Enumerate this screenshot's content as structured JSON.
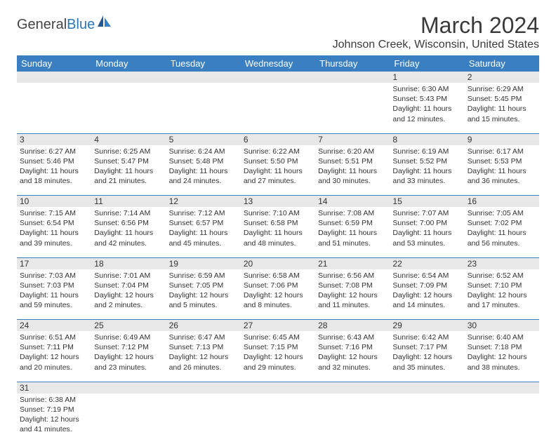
{
  "logo": {
    "main": "General",
    "accent": "Blue"
  },
  "title": "March 2024",
  "location": "Johnson Creek, Wisconsin, United States",
  "header_color": "#3a7fc1",
  "daynum_bg": "#e8e8e8",
  "days": [
    "Sunday",
    "Monday",
    "Tuesday",
    "Wednesday",
    "Thursday",
    "Friday",
    "Saturday"
  ],
  "weeks": [
    [
      null,
      null,
      null,
      null,
      null,
      {
        "n": "1",
        "sr": "Sunrise: 6:30 AM",
        "ss": "Sunset: 5:43 PM",
        "d1": "Daylight: 11 hours",
        "d2": "and 12 minutes."
      },
      {
        "n": "2",
        "sr": "Sunrise: 6:29 AM",
        "ss": "Sunset: 5:45 PM",
        "d1": "Daylight: 11 hours",
        "d2": "and 15 minutes."
      }
    ],
    [
      {
        "n": "3",
        "sr": "Sunrise: 6:27 AM",
        "ss": "Sunset: 5:46 PM",
        "d1": "Daylight: 11 hours",
        "d2": "and 18 minutes."
      },
      {
        "n": "4",
        "sr": "Sunrise: 6:25 AM",
        "ss": "Sunset: 5:47 PM",
        "d1": "Daylight: 11 hours",
        "d2": "and 21 minutes."
      },
      {
        "n": "5",
        "sr": "Sunrise: 6:24 AM",
        "ss": "Sunset: 5:48 PM",
        "d1": "Daylight: 11 hours",
        "d2": "and 24 minutes."
      },
      {
        "n": "6",
        "sr": "Sunrise: 6:22 AM",
        "ss": "Sunset: 5:50 PM",
        "d1": "Daylight: 11 hours",
        "d2": "and 27 minutes."
      },
      {
        "n": "7",
        "sr": "Sunrise: 6:20 AM",
        "ss": "Sunset: 5:51 PM",
        "d1": "Daylight: 11 hours",
        "d2": "and 30 minutes."
      },
      {
        "n": "8",
        "sr": "Sunrise: 6:19 AM",
        "ss": "Sunset: 5:52 PM",
        "d1": "Daylight: 11 hours",
        "d2": "and 33 minutes."
      },
      {
        "n": "9",
        "sr": "Sunrise: 6:17 AM",
        "ss": "Sunset: 5:53 PM",
        "d1": "Daylight: 11 hours",
        "d2": "and 36 minutes."
      }
    ],
    [
      {
        "n": "10",
        "sr": "Sunrise: 7:15 AM",
        "ss": "Sunset: 6:54 PM",
        "d1": "Daylight: 11 hours",
        "d2": "and 39 minutes."
      },
      {
        "n": "11",
        "sr": "Sunrise: 7:14 AM",
        "ss": "Sunset: 6:56 PM",
        "d1": "Daylight: 11 hours",
        "d2": "and 42 minutes."
      },
      {
        "n": "12",
        "sr": "Sunrise: 7:12 AM",
        "ss": "Sunset: 6:57 PM",
        "d1": "Daylight: 11 hours",
        "d2": "and 45 minutes."
      },
      {
        "n": "13",
        "sr": "Sunrise: 7:10 AM",
        "ss": "Sunset: 6:58 PM",
        "d1": "Daylight: 11 hours",
        "d2": "and 48 minutes."
      },
      {
        "n": "14",
        "sr": "Sunrise: 7:08 AM",
        "ss": "Sunset: 6:59 PM",
        "d1": "Daylight: 11 hours",
        "d2": "and 51 minutes."
      },
      {
        "n": "15",
        "sr": "Sunrise: 7:07 AM",
        "ss": "Sunset: 7:00 PM",
        "d1": "Daylight: 11 hours",
        "d2": "and 53 minutes."
      },
      {
        "n": "16",
        "sr": "Sunrise: 7:05 AM",
        "ss": "Sunset: 7:02 PM",
        "d1": "Daylight: 11 hours",
        "d2": "and 56 minutes."
      }
    ],
    [
      {
        "n": "17",
        "sr": "Sunrise: 7:03 AM",
        "ss": "Sunset: 7:03 PM",
        "d1": "Daylight: 11 hours",
        "d2": "and 59 minutes."
      },
      {
        "n": "18",
        "sr": "Sunrise: 7:01 AM",
        "ss": "Sunset: 7:04 PM",
        "d1": "Daylight: 12 hours",
        "d2": "and 2 minutes."
      },
      {
        "n": "19",
        "sr": "Sunrise: 6:59 AM",
        "ss": "Sunset: 7:05 PM",
        "d1": "Daylight: 12 hours",
        "d2": "and 5 minutes."
      },
      {
        "n": "20",
        "sr": "Sunrise: 6:58 AM",
        "ss": "Sunset: 7:06 PM",
        "d1": "Daylight: 12 hours",
        "d2": "and 8 minutes."
      },
      {
        "n": "21",
        "sr": "Sunrise: 6:56 AM",
        "ss": "Sunset: 7:08 PM",
        "d1": "Daylight: 12 hours",
        "d2": "and 11 minutes."
      },
      {
        "n": "22",
        "sr": "Sunrise: 6:54 AM",
        "ss": "Sunset: 7:09 PM",
        "d1": "Daylight: 12 hours",
        "d2": "and 14 minutes."
      },
      {
        "n": "23",
        "sr": "Sunrise: 6:52 AM",
        "ss": "Sunset: 7:10 PM",
        "d1": "Daylight: 12 hours",
        "d2": "and 17 minutes."
      }
    ],
    [
      {
        "n": "24",
        "sr": "Sunrise: 6:51 AM",
        "ss": "Sunset: 7:11 PM",
        "d1": "Daylight: 12 hours",
        "d2": "and 20 minutes."
      },
      {
        "n": "25",
        "sr": "Sunrise: 6:49 AM",
        "ss": "Sunset: 7:12 PM",
        "d1": "Daylight: 12 hours",
        "d2": "and 23 minutes."
      },
      {
        "n": "26",
        "sr": "Sunrise: 6:47 AM",
        "ss": "Sunset: 7:13 PM",
        "d1": "Daylight: 12 hours",
        "d2": "and 26 minutes."
      },
      {
        "n": "27",
        "sr": "Sunrise: 6:45 AM",
        "ss": "Sunset: 7:15 PM",
        "d1": "Daylight: 12 hours",
        "d2": "and 29 minutes."
      },
      {
        "n": "28",
        "sr": "Sunrise: 6:43 AM",
        "ss": "Sunset: 7:16 PM",
        "d1": "Daylight: 12 hours",
        "d2": "and 32 minutes."
      },
      {
        "n": "29",
        "sr": "Sunrise: 6:42 AM",
        "ss": "Sunset: 7:17 PM",
        "d1": "Daylight: 12 hours",
        "d2": "and 35 minutes."
      },
      {
        "n": "30",
        "sr": "Sunrise: 6:40 AM",
        "ss": "Sunset: 7:18 PM",
        "d1": "Daylight: 12 hours",
        "d2": "and 38 minutes."
      }
    ],
    [
      {
        "n": "31",
        "sr": "Sunrise: 6:38 AM",
        "ss": "Sunset: 7:19 PM",
        "d1": "Daylight: 12 hours",
        "d2": "and 41 minutes."
      },
      null,
      null,
      null,
      null,
      null,
      null
    ]
  ]
}
